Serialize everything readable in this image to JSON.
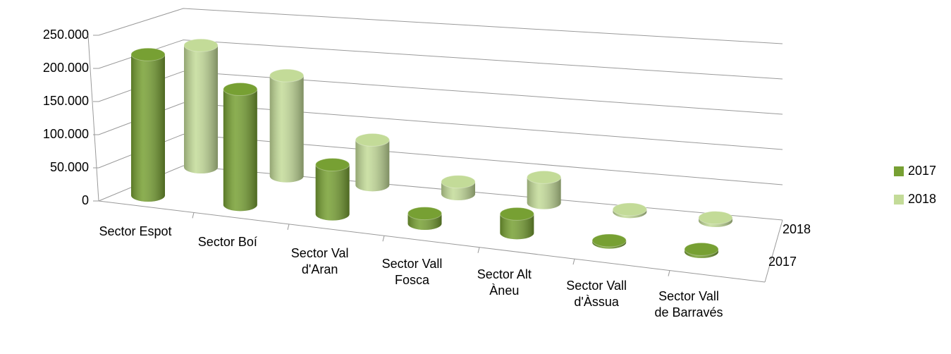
{
  "chart_data": {
    "type": "bar3d",
    "categories": [
      "Sector Espot",
      "Sector Boí",
      "Sector Val d'Aran",
      "Sector Vall Fosca",
      "Sector Alt Àneu",
      "Sector Vall d'Àssua",
      "Sector Vall de Barravés"
    ],
    "series": [
      {
        "name": "2017",
        "color": "#77a033",
        "values": [
          222000,
          182000,
          78000,
          16000,
          30000,
          3000,
          4000
        ]
      },
      {
        "name": "2018",
        "color": "#c3db98",
        "values": [
          200000,
          165000,
          74000,
          20000,
          42000,
          4000,
          5000
        ]
      }
    ],
    "ylim": [
      0,
      250000
    ],
    "yticks": [
      0,
      {
        "value": 50000,
        "label": "50.000"
      },
      {
        "value": 100000,
        "label": "100.000"
      },
      {
        "value": 150000,
        "label": "150.000"
      },
      {
        "value": 200000,
        "label": "200.000"
      },
      {
        "value": 250000,
        "label": "250.000"
      }
    ],
    "grid": true,
    "legend": "right"
  }
}
